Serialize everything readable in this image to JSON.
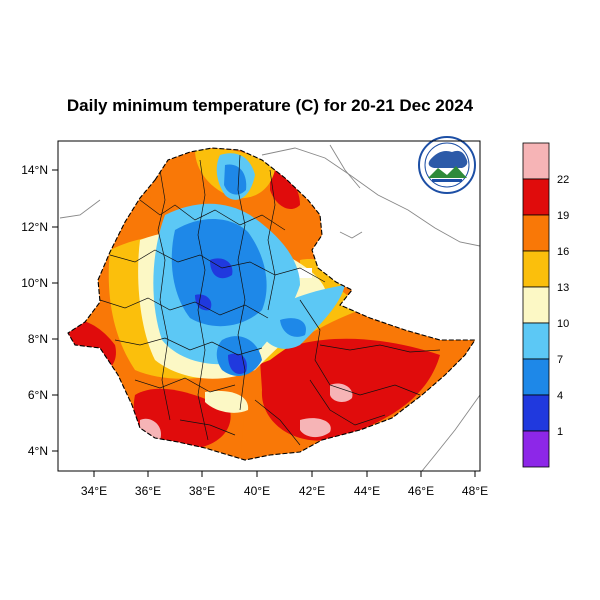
{
  "title": "Daily minimum temperature (C) for 20-21 Dec 2024",
  "x_ticks": [
    "34°E",
    "36°E",
    "38°E",
    "40°E",
    "42°E",
    "44°E",
    "46°E",
    "48°E"
  ],
  "y_ticks": [
    "14°N",
    "12°N",
    "10°N",
    "8°N",
    "6°N",
    "4°N"
  ],
  "colorbar": {
    "labels": [
      "22",
      "19",
      "16",
      "13",
      "10",
      "7",
      "4",
      "1"
    ],
    "colors": [
      "#f6b4b6",
      "#e00c0c",
      "#f97807",
      "#fbbf0c",
      "#fcf8c5",
      "#5cc8f5",
      "#1e88e8",
      "#2039de",
      "#8d27e8"
    ]
  },
  "logo_text": "Ethiopian Meteorology Institute"
}
